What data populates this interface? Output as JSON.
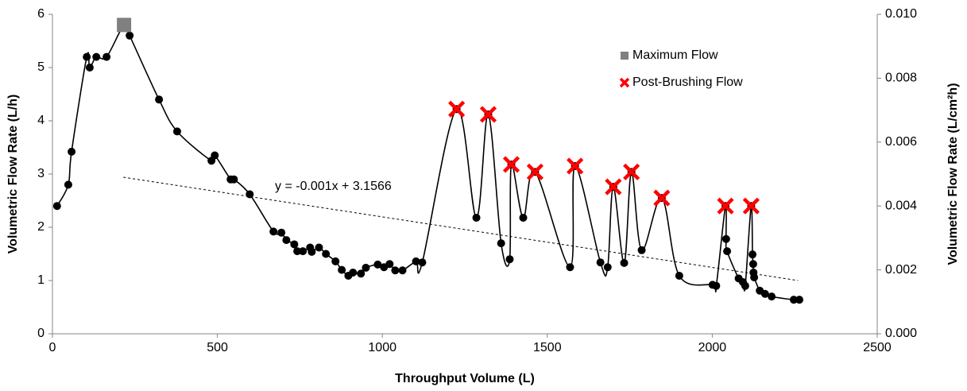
{
  "chart_data": {
    "type": "line",
    "x_label": "Throughput Volume (L)",
    "y_label": "Volumetric Flow Rate (L/h)",
    "y2_label": "Volumetric Flow Rate (L/cm²h)",
    "x": [
      14,
      48,
      58,
      104,
      113,
      133,
      164,
      217,
      234,
      323,
      378,
      482,
      492,
      540,
      550,
      598,
      670,
      694,
      709,
      733,
      742,
      759,
      781,
      786,
      808,
      829,
      858,
      877,
      897,
      911,
      935,
      950,
      986,
      1005,
      1022,
      1039,
      1061,
      1102,
      1121,
      1225,
      1285,
      1321,
      1360,
      1386,
      1391,
      1427,
      1463,
      1569,
      1584,
      1661,
      1683,
      1700,
      1733,
      1755,
      1786,
      1847,
      1900,
      2001,
      2012,
      2040,
      2042,
      2045,
      2080,
      2093,
      2100,
      2118,
      2122,
      2124,
      2125,
      2127,
      2144,
      2160,
      2180,
      2247,
      2264
    ],
    "values": [
      2.4,
      2.8,
      3.42,
      5.2,
      5.0,
      5.2,
      5.2,
      5.8,
      5.6,
      4.4,
      3.8,
      3.25,
      3.35,
      2.9,
      2.9,
      2.62,
      1.92,
      1.9,
      1.76,
      1.68,
      1.55,
      1.55,
      1.62,
      1.54,
      1.62,
      1.5,
      1.36,
      1.2,
      1.09,
      1.15,
      1.13,
      1.24,
      1.3,
      1.25,
      1.31,
      1.19,
      1.19,
      1.36,
      1.34,
      4.22,
      2.18,
      4.12,
      1.7,
      1.4,
      3.18,
      2.18,
      3.04,
      1.25,
      3.15,
      1.34,
      1.25,
      2.76,
      1.33,
      3.04,
      1.57,
      2.55,
      1.09,
      0.92,
      0.9,
      2.4,
      1.78,
      1.55,
      1.04,
      0.97,
      0.9,
      2.4,
      1.49,
      1.31,
      1.15,
      1.06,
      0.81,
      0.75,
      0.7,
      0.64,
      0.64
    ],
    "color": "#000000",
    "series": [
      {
        "name": "Maximum Flow",
        "color": "#808080",
        "marker": "square",
        "x": [
          217
        ],
        "values": [
          5.8
        ]
      },
      {
        "name": "Post-Brushing Flow",
        "color": "#ff0000",
        "marker": "x",
        "x": [
          1225,
          1321,
          1391,
          1463,
          1584,
          1700,
          1755,
          1847,
          2040,
          2118
        ],
        "values": [
          4.22,
          4.12,
          3.18,
          3.04,
          3.15,
          2.76,
          3.04,
          2.55,
          2.4,
          2.4
        ]
      }
    ],
    "trendline": {
      "label": "y = -0.001x + 3.1566",
      "x": [
        215,
        2260
      ],
      "values": [
        2.94,
        1.0
      ]
    },
    "xlim": [
      0,
      2500
    ],
    "xticks": [
      0,
      500,
      1000,
      1500,
      2000,
      2500
    ],
    "ylim": [
      0,
      6
    ],
    "yticks": [
      0,
      1,
      2,
      3,
      4,
      5,
      6
    ],
    "y2lim": [
      0,
      0.01
    ],
    "y2ticks": [
      {
        "value": 0,
        "label": "0.000"
      },
      {
        "value": 0.002,
        "label": "0.002"
      },
      {
        "value": 0.004,
        "label": "0.004"
      },
      {
        "value": 0.006,
        "label": "0.006"
      },
      {
        "value": 0.008,
        "label": "0.008"
      },
      {
        "value": 0.01,
        "label": "0.010"
      }
    ],
    "legend": "upper right",
    "grid": false
  }
}
